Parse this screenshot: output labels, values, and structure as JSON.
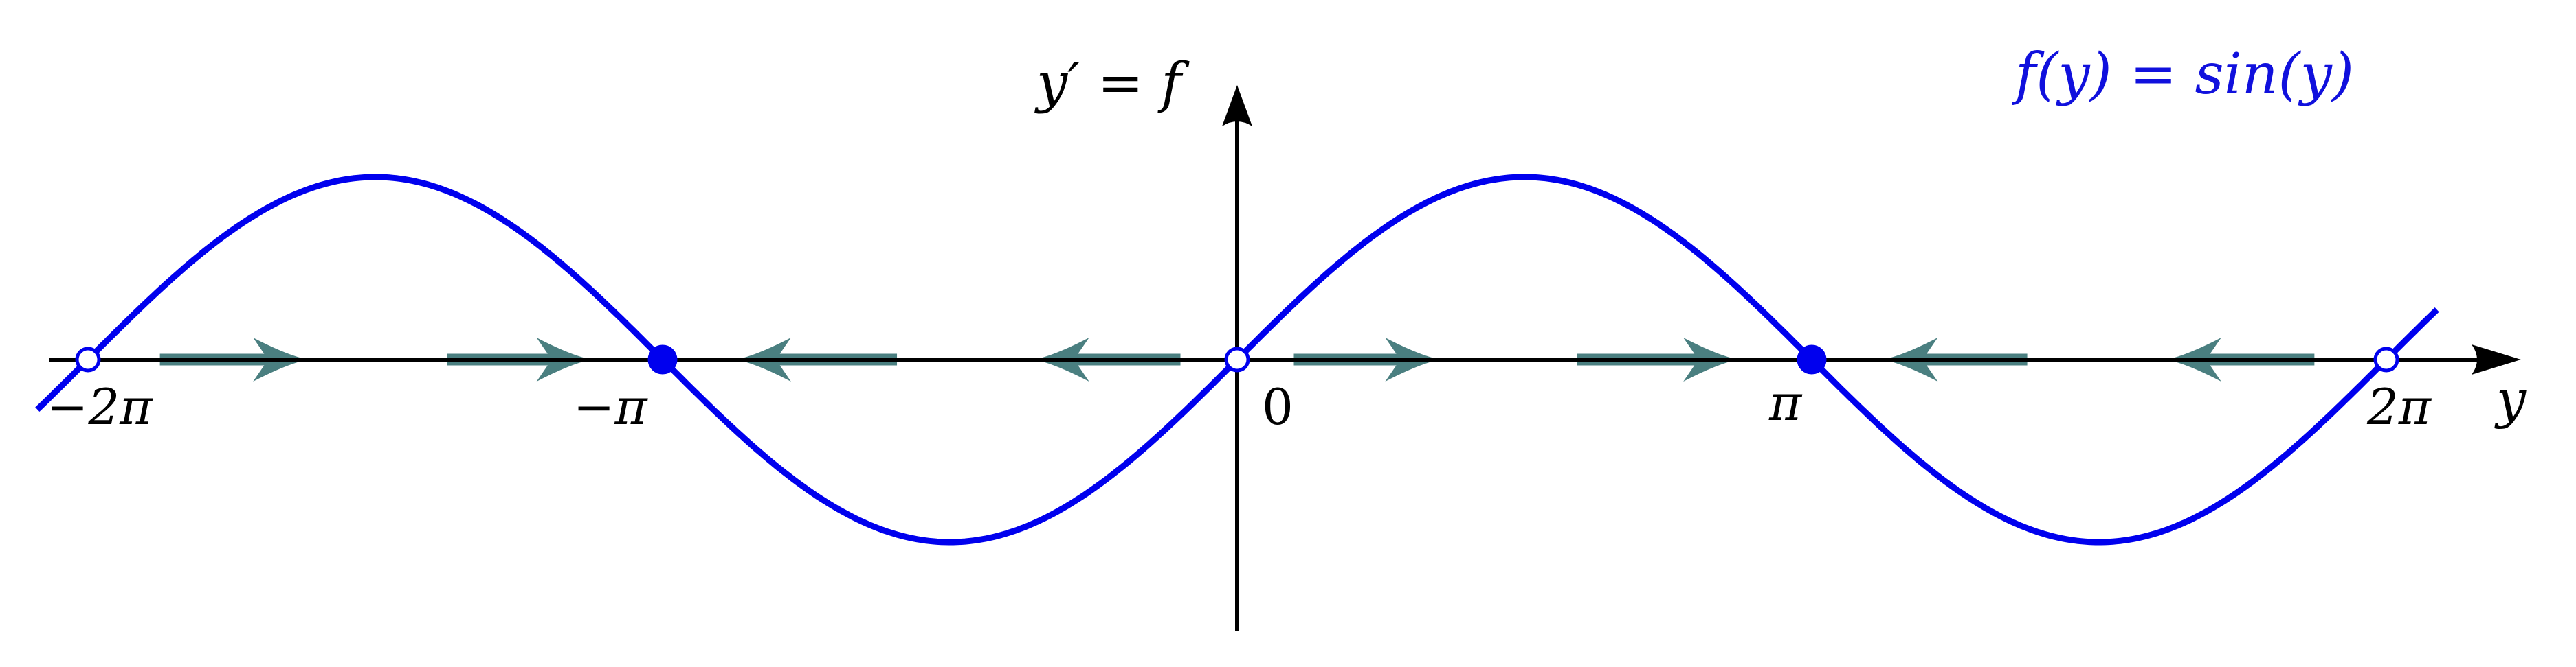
{
  "chart_data": {
    "type": "line",
    "title": "f(y) = sin(y)",
    "xlabel": "y",
    "ylabel": "y′ = f",
    "xlim": [
      -6.85,
      6.85
    ],
    "ylim": [
      -1.48,
      1.48
    ],
    "grid": false,
    "legend": "none",
    "x_ticks": [
      {
        "value": -6.2832,
        "label": "−2π"
      },
      {
        "value": -3.1416,
        "label": "−π"
      },
      {
        "value": 0,
        "label": "0"
      },
      {
        "value": 3.1416,
        "label": "π"
      },
      {
        "value": 6.2832,
        "label": "2π"
      }
    ],
    "series": [
      {
        "function": "sin(y)",
        "x_range": [
          -6.56,
          6.56
        ],
        "color": "#0000ee"
      }
    ],
    "equilibria": [
      {
        "y": -6.2832,
        "stability": "unstable",
        "marker": "open"
      },
      {
        "y": -3.1416,
        "stability": "stable",
        "marker": "filled"
      },
      {
        "y": 0,
        "stability": "unstable",
        "marker": "open"
      },
      {
        "y": 3.1416,
        "stability": "stable",
        "marker": "filled"
      },
      {
        "y": 6.2832,
        "stability": "unstable",
        "marker": "open"
      }
    ],
    "flow_arrows": [
      {
        "from": -5.89,
        "to": -5.08,
        "direction": "right"
      },
      {
        "from": -4.32,
        "to": -3.53,
        "direction": "right"
      },
      {
        "from": -1.86,
        "to": -2.74,
        "direction": "left"
      },
      {
        "from": -0.31,
        "to": -1.11,
        "direction": "left"
      },
      {
        "from": 0.31,
        "to": 1.11,
        "direction": "right"
      },
      {
        "from": 1.86,
        "to": 2.74,
        "direction": "right"
      },
      {
        "from": 4.32,
        "to": 3.53,
        "direction": "left"
      },
      {
        "from": 5.89,
        "to": 5.08,
        "direction": "left"
      }
    ],
    "colors": {
      "curve": "#0000ee",
      "axis": "#000000",
      "flow": "#4a7f80",
      "equilibrium": "#0000ee",
      "label": "#000000",
      "title": "#1010dd"
    }
  }
}
